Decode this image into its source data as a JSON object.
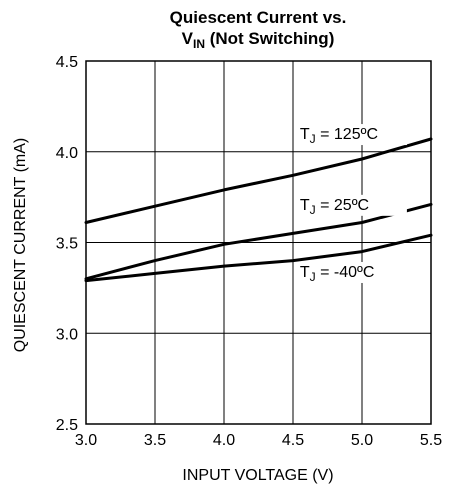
{
  "chart_data": {
    "type": "line",
    "title_line1": "Quiescent Current vs.",
    "title_line2_main": "V",
    "title_line2_sub": "IN",
    "title_line2_rest": " (Not Switching)",
    "xlabel": "INPUT VOLTAGE (V)",
    "ylabel": "QUIESCENT CURRENT (mA)",
    "xlim": [
      3.0,
      5.5
    ],
    "ylim": [
      2.5,
      4.5
    ],
    "x_ticks": [
      3.0,
      3.5,
      4.0,
      4.5,
      5.0,
      5.5
    ],
    "x_tick_labels": [
      "3.0",
      "3.5",
      "4.0",
      "4.5",
      "5.0",
      "5.5"
    ],
    "y_ticks": [
      2.5,
      3.0,
      3.5,
      4.0,
      4.5
    ],
    "y_tick_labels": [
      "2.5",
      "3.0",
      "3.5",
      "4.0",
      "4.5"
    ],
    "grid": true,
    "series": [
      {
        "name_prefix": "T",
        "name_sub": "J",
        "name_suffix": " = 125ºC",
        "x": [
          3.0,
          3.5,
          4.0,
          4.5,
          5.0,
          5.5
        ],
        "y": [
          3.61,
          3.7,
          3.79,
          3.87,
          3.96,
          4.07
        ],
        "label_at": [
          4.55,
          4.07
        ]
      },
      {
        "name_prefix": "T",
        "name_sub": "J",
        "name_suffix": " = 25ºC",
        "x": [
          3.0,
          3.5,
          4.0,
          4.5,
          5.0,
          5.5
        ],
        "y": [
          3.3,
          3.4,
          3.49,
          3.55,
          3.61,
          3.71
        ],
        "label_at": [
          4.55,
          3.68
        ]
      },
      {
        "name_prefix": "T",
        "name_sub": "J",
        "name_suffix": " = -40ºC",
        "x": [
          3.0,
          3.5,
          4.0,
          4.5,
          5.0,
          5.5
        ],
        "y": [
          3.29,
          3.33,
          3.37,
          3.4,
          3.45,
          3.54
        ],
        "label_at": [
          4.55,
          3.31
        ]
      }
    ]
  }
}
